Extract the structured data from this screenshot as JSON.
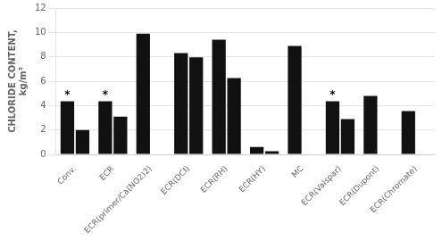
{
  "chart_data": {
    "type": "bar",
    "categories": [
      "Conv.",
      "ECR",
      "ECR(primer/Ca(NO2)2)",
      "ECR(DCI)",
      "ECR(RH)",
      "ECR(HY)",
      "MC",
      "ECR(Valspar)",
      "ECR(Dupont)",
      "ECR(Chromate)"
    ],
    "series": [
      {
        "color": "#111111",
        "values": [
          4.35,
          4.35,
          9.9,
          8.3,
          9.4,
          0.6,
          8.9,
          4.35,
          4.8,
          3.55
        ],
        "annotations": [
          {
            "category": "Conv.",
            "text": "*"
          },
          {
            "category": "ECR",
            "text": "*"
          },
          {
            "category": "ECR(Valspar)",
            "text": "*"
          }
        ]
      },
      {
        "color": "#111111",
        "values": [
          2.0,
          3.1,
          null,
          7.95,
          6.25,
          0.25,
          null,
          2.9,
          null,
          null
        ]
      }
    ],
    "ylabel": "CHLORIDE CONTENT,\nkg/m³",
    "ylim": [
      0,
      12
    ],
    "yticks": [
      0,
      2,
      4,
      6,
      8,
      10,
      12
    ],
    "grid": true
  }
}
